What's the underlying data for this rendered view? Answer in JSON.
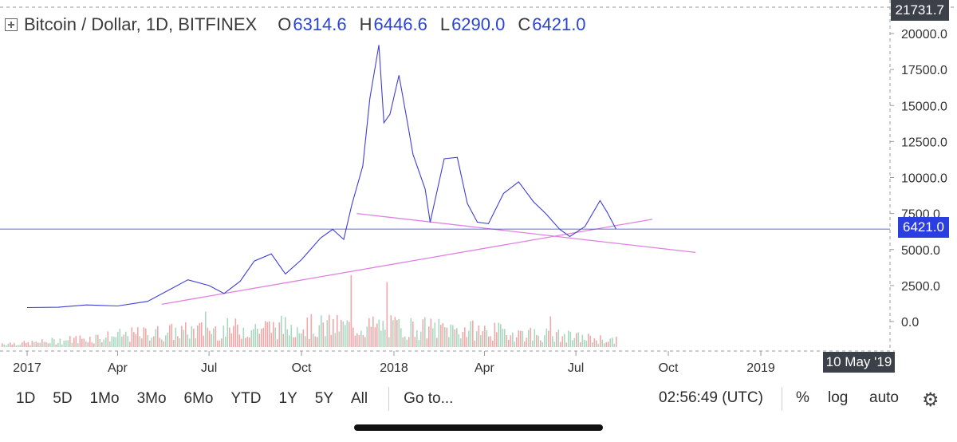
{
  "header": {
    "title": "Bitcoin / Dollar, 1D, BITFINEX",
    "ohlc": [
      {
        "key": "O",
        "value": "6314.6"
      },
      {
        "key": "H",
        "value": "6446.6"
      },
      {
        "key": "L",
        "value": "6290.0"
      },
      {
        "key": "C",
        "value": "6421.0"
      }
    ]
  },
  "price_tags": {
    "top": "21731.7",
    "current": "6421.0"
  },
  "crosshair_date": "10 May '19",
  "toolbar": {
    "ranges": [
      "1D",
      "5D",
      "1Mo",
      "3Mo",
      "6Mo",
      "YTD",
      "1Y",
      "5Y",
      "All"
    ],
    "goto": "Go to...",
    "time": "02:56:49 (UTC)",
    "percent": "%",
    "log": "log",
    "auto": "auto"
  },
  "colors": {
    "price_line": "#3f3fd6",
    "trendline": "#e080e0",
    "volume_up": "#a8d8c0",
    "volume_down": "#f0a8a8",
    "current_price": "#2b3fe0"
  },
  "chart_data": {
    "type": "line",
    "y_axis_ticks": [
      "20000.0",
      "17500.0",
      "15000.0",
      "12500.0",
      "10000.0",
      "7500.0",
      "5000.0",
      "2500.0",
      "0.0"
    ],
    "x_axis_ticks": [
      "2017",
      "Apr",
      "Jul",
      "Oct",
      "2018",
      "Apr",
      "Jul",
      "Oct",
      "2019"
    ],
    "ylim": [
      -1100,
      21731.7
    ],
    "series": [
      {
        "x": [
          "2017-01-01",
          "2017-02-01",
          "2017-03-01",
          "2017-04-01",
          "2017-05-01",
          "2017-05-25",
          "2017-06-10",
          "2017-07-01",
          "2017-07-16",
          "2017-08-01",
          "2017-08-15",
          "2017-09-01",
          "2017-09-15",
          "2017-10-01",
          "2017-10-20",
          "2017-11-01",
          "2017-11-12",
          "2017-11-20",
          "2017-12-01",
          "2017-12-08",
          "2017-12-17",
          "2017-12-22",
          "2017-12-28",
          "2018-01-06",
          "2018-01-15",
          "2018-01-20",
          "2018-02-01",
          "2018-02-06",
          "2018-02-20",
          "2018-03-05",
          "2018-03-15",
          "2018-03-25",
          "2018-04-05",
          "2018-04-20",
          "2018-05-05",
          "2018-05-20",
          "2018-06-01",
          "2018-06-15",
          "2018-06-25",
          "2018-07-10",
          "2018-07-25",
          "2018-08-01",
          "2018-08-10"
        ],
        "y": [
          970,
          990,
          1150,
          1080,
          1400,
          2300,
          2900,
          2500,
          1950,
          2800,
          4200,
          4700,
          3300,
          4300,
          5800,
          6400,
          5700,
          8100,
          10800,
          15500,
          19200,
          13800,
          14400,
          17100,
          13600,
          11600,
          9200,
          6900,
          11300,
          11400,
          8200,
          6900,
          6800,
          8900,
          9700,
          8300,
          7500,
          6400,
          5900,
          6600,
          8400,
          7600,
          6421
        ]
      }
    ],
    "trendlines": [
      {
        "from": {
          "x": "2017-05-15",
          "y": 1200
        },
        "to": {
          "x": "2018-09-15",
          "y": 7100
        }
      },
      {
        "from": {
          "x": "2017-11-25",
          "y": 7500
        },
        "to": {
          "x": "2018-10-28",
          "y": 4800
        }
      }
    ],
    "current_price": 6421.0
  }
}
